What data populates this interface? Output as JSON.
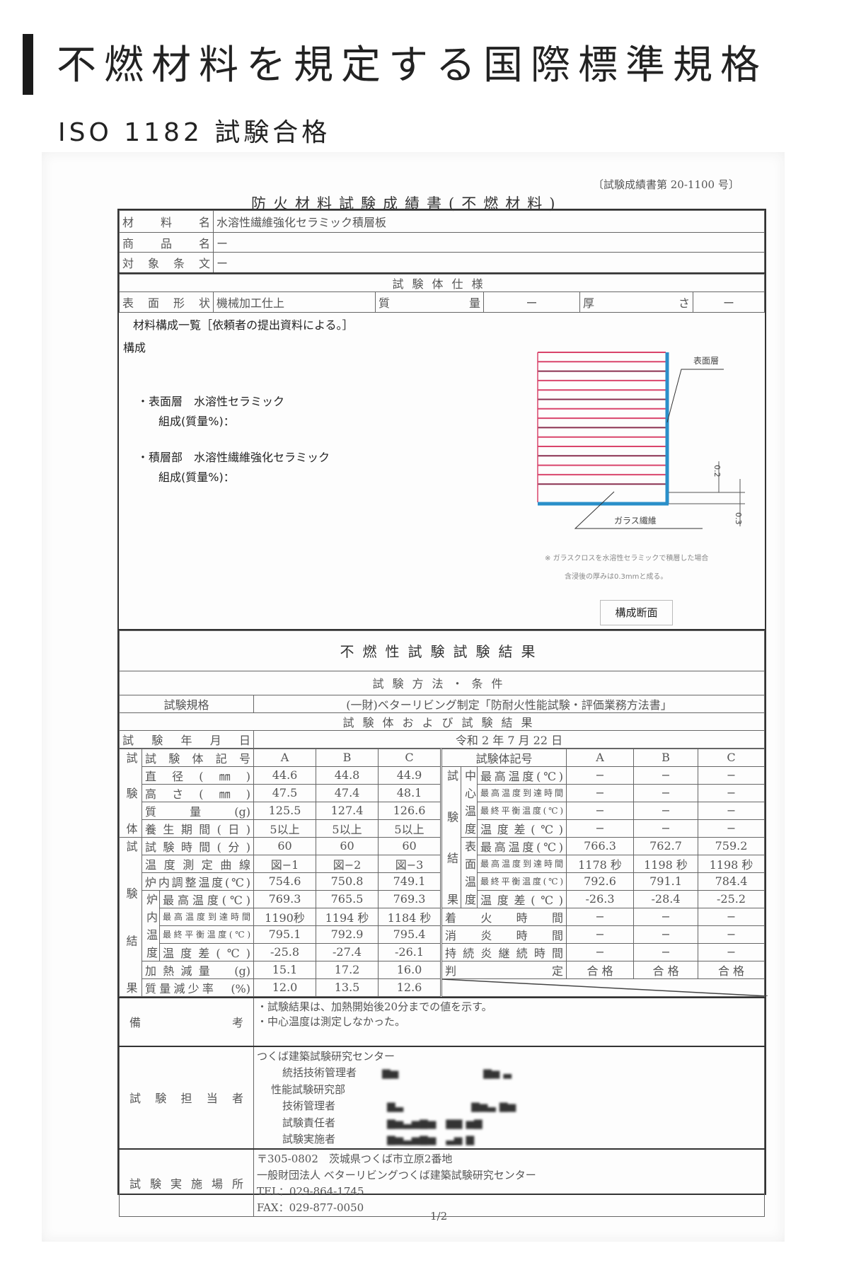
{
  "header": {
    "title": "不燃材料を規定する国際標準規格",
    "subtitle": "ISO 1182 試験合格"
  },
  "doc": {
    "ref_no": "〔試験成績書第 20-1100 号〕",
    "title": "防火材料試験成績書(不燃材料)",
    "info": [
      {
        "label": "材料名",
        "value": "水溶性繊維強化セラミック積層板"
      },
      {
        "label": "商品名",
        "value": "ー"
      },
      {
        "label": "対象条文",
        "value": "ー"
      }
    ],
    "spec": {
      "header": "試験体仕様",
      "surface_label": "表面形状",
      "surface_value": "機械加工仕上",
      "mass_label": "質量",
      "mass_value": "ー",
      "thickness_label": "厚さ",
      "thickness_value": "ー"
    },
    "composition": {
      "heading": "材料構成一覧［依頼者の提出資料による。］",
      "label": "構成",
      "surface_item": "・表面層　水溶性セラミック",
      "surface_comp": "組成(質量%)：",
      "laminate_item": "・積層部　水溶性繊維強化セラミック",
      "laminate_comp": "組成(質量%)：",
      "diagram": {
        "surface_layer": "表面層",
        "glass_fiber": "ガラス繊維",
        "dim_surface": "0.2",
        "dim_glass": "0.3",
        "note1": "※ ガラスクロスを水溶性セラミックで積層した場合",
        "note2": "含浸後の厚みは0.3mmと成る。",
        "caption": "構成断面",
        "layer_color": "#d9446b",
        "surface_color": "#2a8fc9"
      }
    }
  },
  "results": {
    "title": "不燃性試験試験結果",
    "method_header": "試験方法・条件",
    "standard_label": "試験規格",
    "standard_value": "(一財)ベターリビング制定「防耐火性能試験・評価業務方法書」",
    "subtitle": "試験体および試験結果",
    "date_label": "試験年月日",
    "date_value": "令和 2 年 7 月 22 日",
    "groups": {
      "specimen": "試験体",
      "result": "試験結果",
      "furnace": "炉内温度",
      "center": "中心温度",
      "surface": "表面温度"
    },
    "left_rows": [
      {
        "label": "試験体記号",
        "a": "A",
        "b": "B",
        "c": "C"
      },
      {
        "label": "直径(㎜)",
        "a": "44.6",
        "b": "44.8",
        "c": "44.9"
      },
      {
        "label": "高さ(㎜)",
        "a": "47.5",
        "b": "47.4",
        "c": "48.1"
      },
      {
        "label": "質量(g)",
        "a": "125.5",
        "b": "127.4",
        "c": "126.6"
      },
      {
        "label": "養生期間(日)",
        "a": "5以上",
        "b": "5以上",
        "c": "5以上"
      },
      {
        "label": "試験時間(分)",
        "a": "60",
        "b": "60",
        "c": "60"
      },
      {
        "label": "温度測定曲線",
        "a": "図−1",
        "b": "図−2",
        "c": "図−3"
      },
      {
        "label": "炉内調整温度(℃)",
        "a": "754.6",
        "b": "750.8",
        "c": "749.1"
      },
      {
        "label": "最高温度(℃)",
        "a": "769.3",
        "b": "765.5",
        "c": "769.3"
      },
      {
        "label": "最高温度到達時間",
        "a": "1190秒",
        "b": "1194 秒",
        "c": "1184 秒"
      },
      {
        "label": "最終平衡温度(℃)",
        "a": "795.1",
        "b": "792.9",
        "c": "795.4"
      },
      {
        "label": "温度差(℃)",
        "a": "-25.8",
        "b": "-27.4",
        "c": "-26.1"
      },
      {
        "label": "加熱減量　(g)",
        "a": "15.1",
        "b": "17.2",
        "c": "16.0"
      },
      {
        "label": "質量減少率　(%)",
        "a": "12.0",
        "b": "13.5",
        "c": "12.6"
      }
    ],
    "right_rows": [
      {
        "label": "試験体記号",
        "a": "A",
        "b": "B",
        "c": "C"
      },
      {
        "label": "最高温度(℃)",
        "a": "−",
        "b": "−",
        "c": "−"
      },
      {
        "label": "最高温度到達時間",
        "a": "−",
        "b": "−",
        "c": "−"
      },
      {
        "label": "最終平衡温度(℃)",
        "a": "−",
        "b": "−",
        "c": "−"
      },
      {
        "label": "温度差(℃)",
        "a": "−",
        "b": "−",
        "c": "−"
      },
      {
        "label": "最高温度(℃)",
        "a": "766.3",
        "b": "762.7",
        "c": "759.2"
      },
      {
        "label": "最高温度到達時間",
        "a": "1178 秒",
        "b": "1198 秒",
        "c": "1198 秒"
      },
      {
        "label": "最終平衡温度(℃)",
        "a": "792.6",
        "b": "791.1",
        "c": "784.4"
      },
      {
        "label": "温度差(℃)",
        "a": "-26.3",
        "b": "-28.4",
        "c": "-25.2"
      },
      {
        "label": "着火時間",
        "a": "−",
        "b": "−",
        "c": "−"
      },
      {
        "label": "消炎時間",
        "a": "−",
        "b": "−",
        "c": "−"
      },
      {
        "label": "持続炎継続時間",
        "a": "−",
        "b": "−",
        "c": "−"
      },
      {
        "label": "判定",
        "a": "合 格",
        "b": "合 格",
        "c": "合 格"
      }
    ],
    "remarks_label": "備考",
    "remarks": [
      "・試験結果は、加熱開始後20分までの値を示す。",
      "・中心温度は測定しなかった。"
    ],
    "staff_label": "試験担当者",
    "staff": {
      "org": "つくば建築試験研究センター",
      "general_manager": "統括技術管理者",
      "dept": "性能試験研究部",
      "tech_manager": "技術管理者",
      "responsible": "試験責任者",
      "executor": "試験実施者"
    },
    "place_label": "試験実施場所",
    "place": [
      "〒305-0802　茨城県つくば市立原2番地",
      "一般財団法人 ベターリビングつくば建築試験研究センター",
      "TEL：029-864-1745",
      "FAX：029-877-0050"
    ],
    "page": "1/2"
  }
}
